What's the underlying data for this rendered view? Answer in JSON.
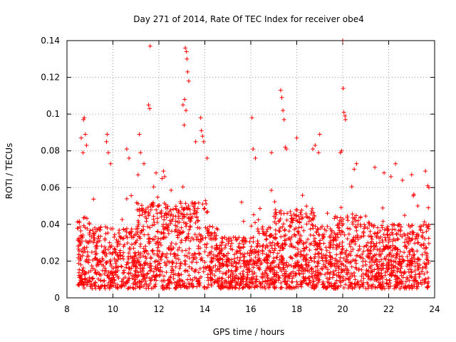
{
  "chart_data": {
    "type": "scatter",
    "title": "Day 271 of 2014, Rate Of TEC Index for receiver obe4",
    "xlabel": "GPS time / hours",
    "ylabel": "ROTI / TECUs",
    "xlim": [
      8,
      24
    ],
    "ylim": [
      0,
      0.14
    ],
    "x_ticks": [
      "8",
      "10",
      "12",
      "14",
      "16",
      "18",
      "20",
      "22",
      "24"
    ],
    "y_ticks": [
      "0",
      "0.02",
      "0.04",
      "0.06",
      "0.08",
      "0.1",
      "0.12",
      "0.14"
    ],
    "grid": true,
    "marker": "+",
    "color": "#ff0000",
    "series": [
      {
        "name": "ROTI",
        "x": [
          8.75,
          8.72,
          8.8,
          8.62,
          8.85,
          8.7,
          9.75,
          9.72,
          9.8,
          9.9,
          10.6,
          10.7,
          11.15,
          11.2,
          11.55,
          11.6,
          11.62,
          11.35,
          12.2,
          12.25,
          13.05,
          13.1,
          13.15,
          13.2,
          13.22,
          13.25,
          13.3,
          13.12,
          13.18,
          13.6,
          13.82,
          13.85,
          13.9,
          13.95,
          14.1,
          16.05,
          16.1,
          16.2,
          16.9,
          17.3,
          17.35,
          17.4,
          17.45,
          17.5,
          17.55,
          18.0,
          18.7,
          18.8,
          18.95,
          19.0,
          19.9,
          19.95,
          20.0,
          20.02,
          20.05,
          20.1,
          20.12,
          20.5,
          20.6,
          21.4,
          21.8,
          22.1,
          22.3,
          22.6,
          23.0,
          23.6,
          23.7,
          23.75
        ],
        "y": [
          0.098,
          0.097,
          0.089,
          0.087,
          0.083,
          0.079,
          0.089,
          0.085,
          0.079,
          0.073,
          0.081,
          0.076,
          0.089,
          0.079,
          0.105,
          0.103,
          0.137,
          0.073,
          0.069,
          0.066,
          0.105,
          0.094,
          0.136,
          0.134,
          0.13,
          0.123,
          0.118,
          0.108,
          0.102,
          0.085,
          0.098,
          0.091,
          0.088,
          0.085,
          0.076,
          0.098,
          0.081,
          0.076,
          0.079,
          0.113,
          0.109,
          0.102,
          0.097,
          0.082,
          0.081,
          0.087,
          0.081,
          0.083,
          0.079,
          0.089,
          0.079,
          0.08,
          0.14,
          0.114,
          0.101,
          0.099,
          0.097,
          0.07,
          0.073,
          0.071,
          0.068,
          0.066,
          0.073,
          0.064,
          0.067,
          0.069,
          0.061,
          0.06
        ]
      }
    ]
  }
}
